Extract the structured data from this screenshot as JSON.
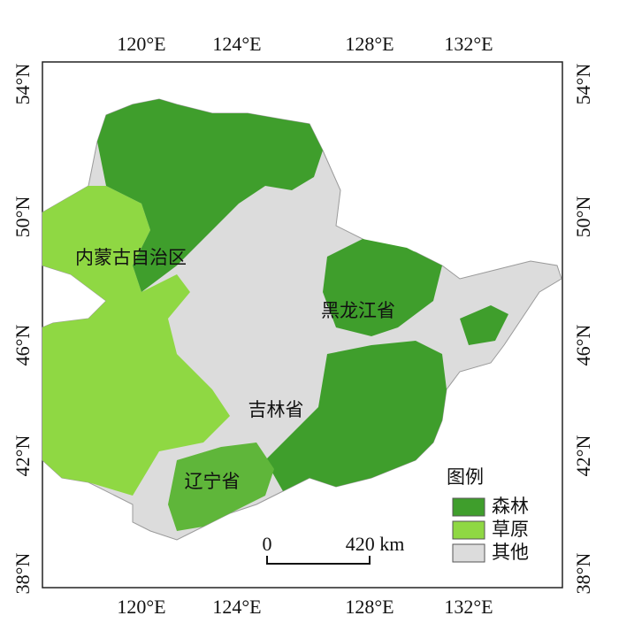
{
  "map": {
    "lon_labels": [
      "120°E",
      "124°E",
      "128°E",
      "132°E"
    ],
    "lat_labels": [
      "54°N",
      "50°N",
      "46°N",
      "42°N",
      "38°N"
    ],
    "regions": [
      "内蒙古自治区",
      "黑龙江省",
      "吉林省",
      "辽宁省"
    ],
    "legend": {
      "title": "图例",
      "items": [
        {
          "label": "森林",
          "color": "#3f9e2c"
        },
        {
          "label": "草原",
          "color": "#8fd843"
        },
        {
          "label": "其他",
          "color": "#dcdcdc"
        }
      ]
    },
    "scale_bar": {
      "start": "0",
      "end": "420 km"
    }
  }
}
